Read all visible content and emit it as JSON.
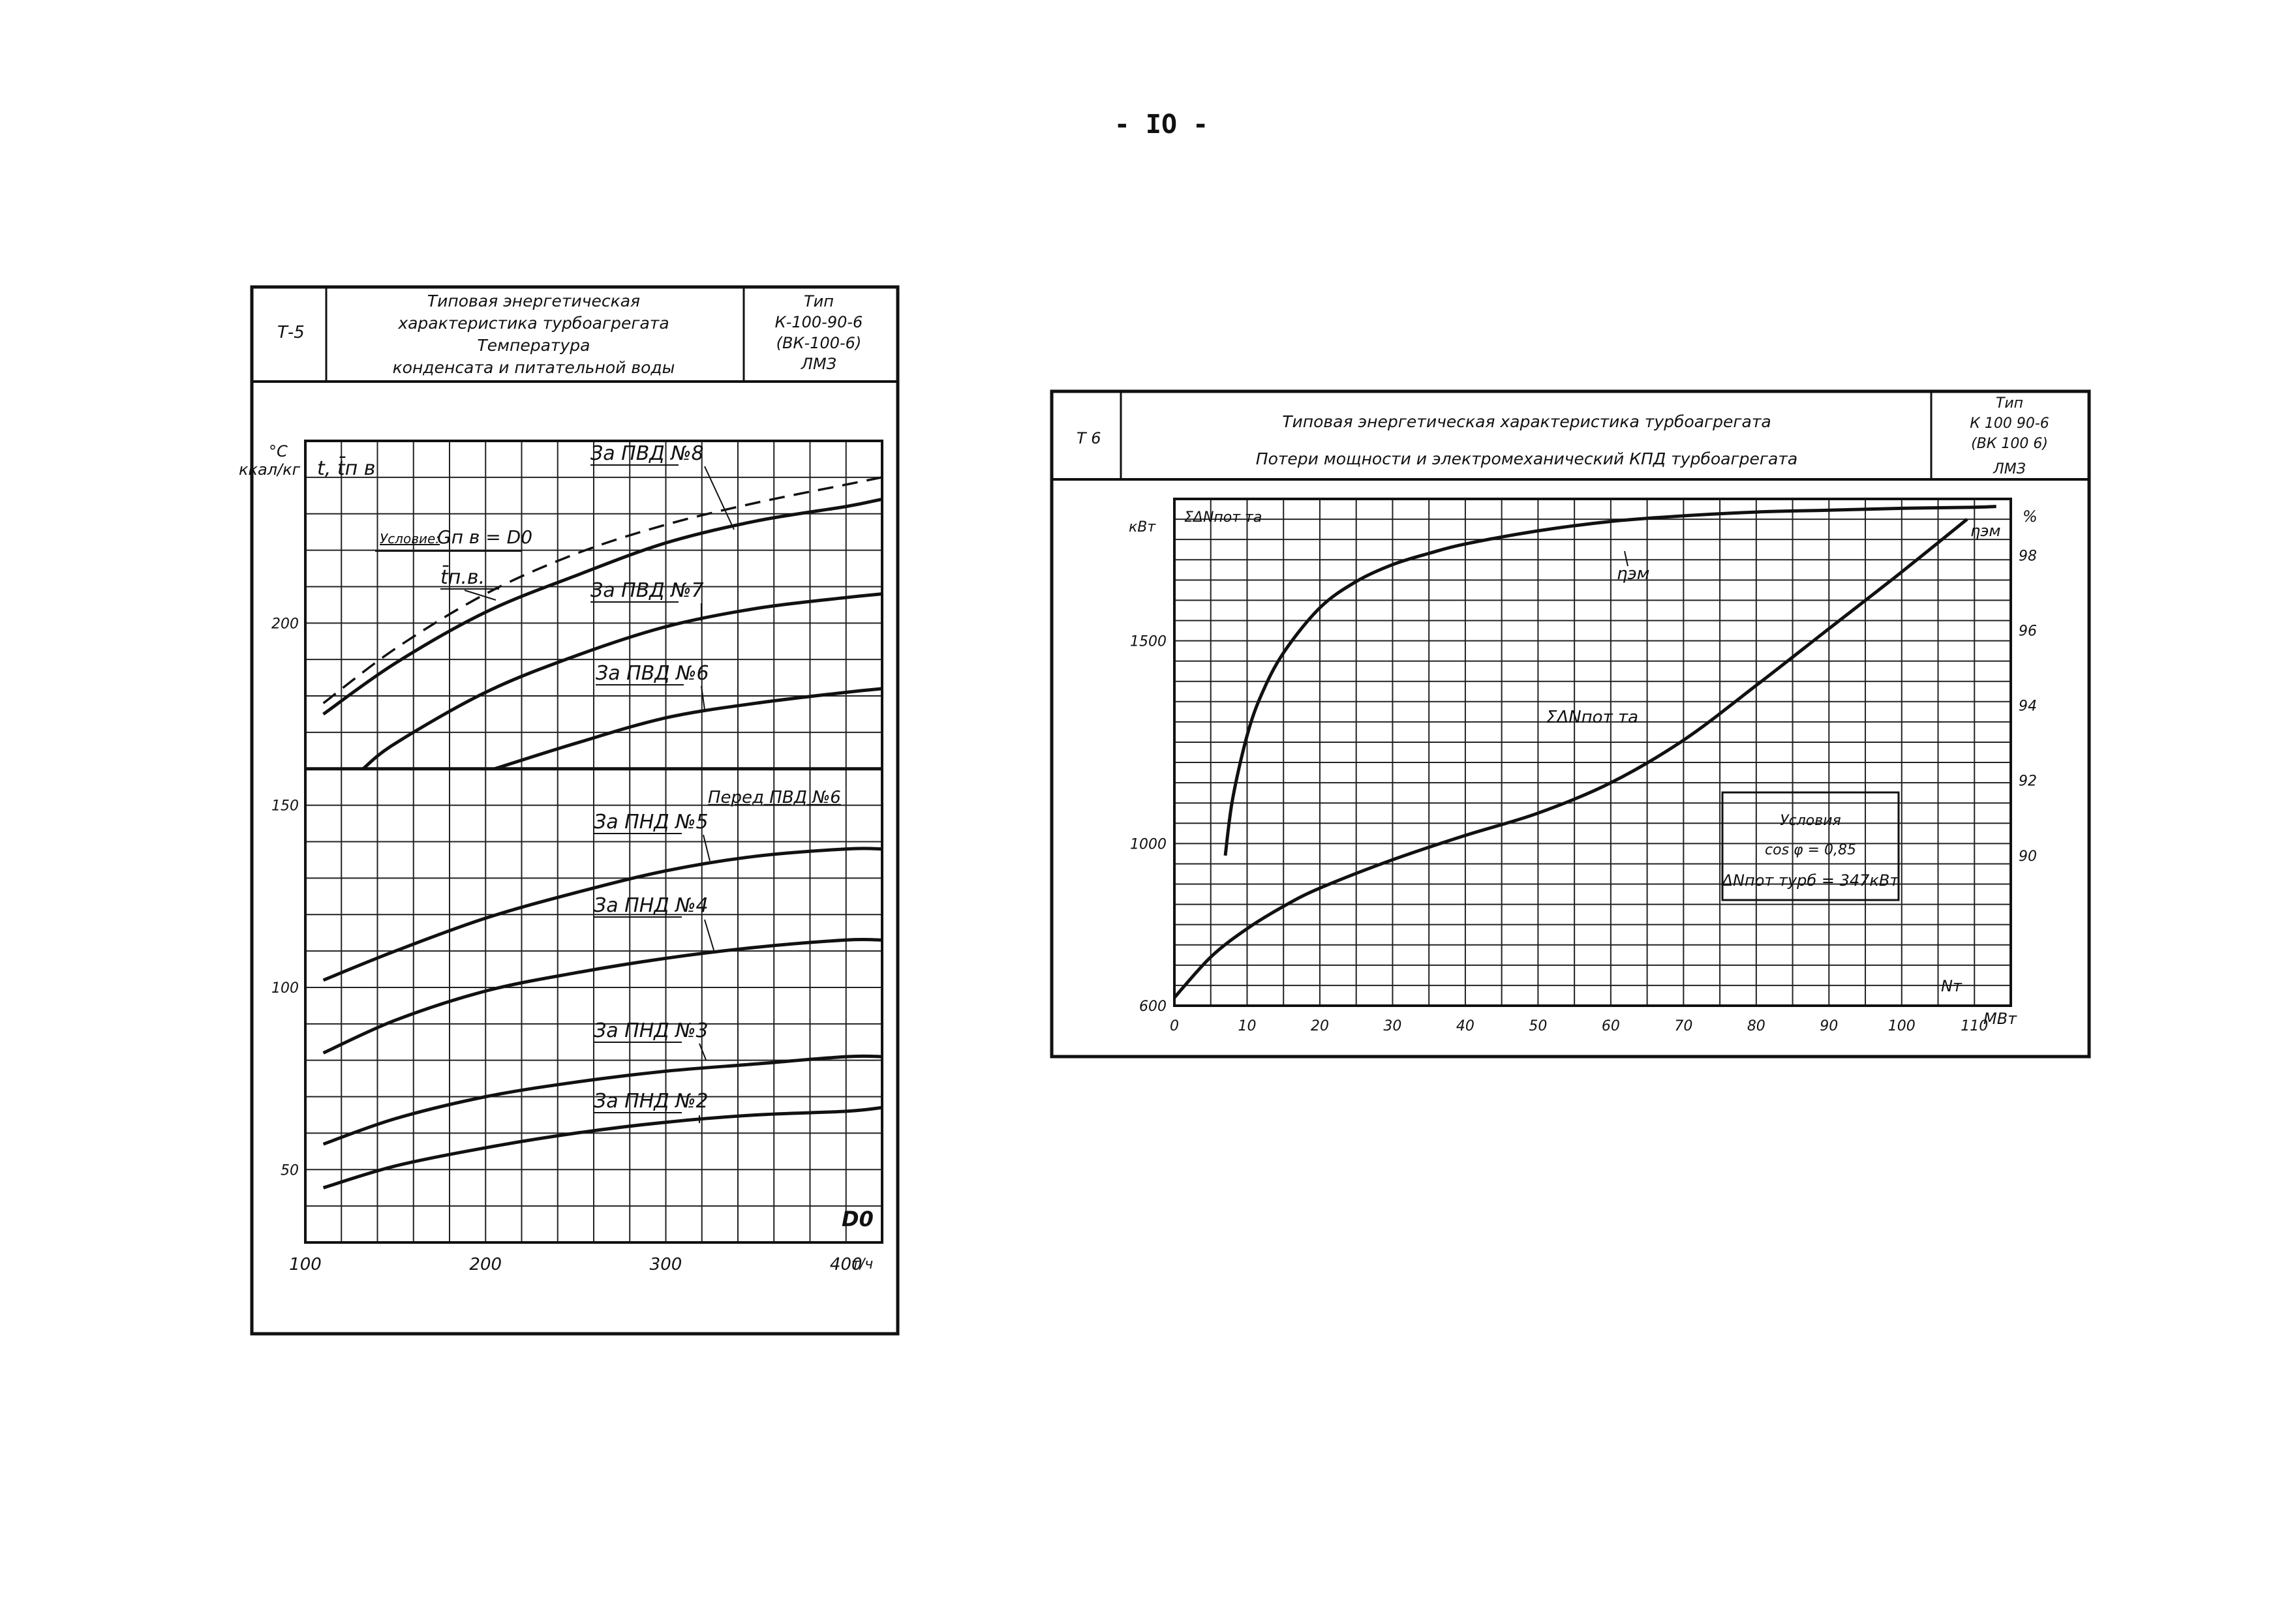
{
  "page_number": "- IO -",
  "chart_data": [
    {
      "id": "T-5",
      "type": "line",
      "header": {
        "code": "Т-5",
        "title_lines": [
          "Типовая энергетическая",
          "характеристика турбоагрегата",
          "Температура",
          "конденсата и питательной воды"
        ],
        "type_lines": [
          "Тип",
          "К-100-90-6",
          "(ВК-100-6)",
          "ЛМЗ"
        ]
      },
      "y_unit_lines": [
        "°C",
        "ккал/кг"
      ],
      "y_symbol": "t, t̄п в",
      "xlabel": "D0",
      "x_unit": "т/ч",
      "xlim": [
        100,
        420
      ],
      "ylim": [
        30,
        250
      ],
      "x_ticks": [
        "100",
        "200",
        "300",
        "400"
      ],
      "x_tick_values": [
        100,
        200,
        300,
        400
      ],
      "y_ticks": [
        "50",
        "100",
        "150",
        "200"
      ],
      "y_tick_values": [
        50,
        100,
        150,
        200
      ],
      "grid": true,
      "condition_label": "Условие:",
      "condition_formula": "Gп в = D0",
      "bands": [
        {
          "label": "Перед ПВД №6",
          "value": 160
        }
      ],
      "series": [
        {
          "name": "t̄п.в.",
          "dashed": true,
          "x": [
            110,
            150,
            200,
            250,
            300,
            350,
            400,
            420
          ],
          "y": [
            178,
            193,
            208,
            219,
            227,
            233,
            238,
            240
          ]
        },
        {
          "name": "За ПВД №8",
          "dashed": false,
          "x": [
            110,
            150,
            200,
            250,
            300,
            350,
            400,
            420
          ],
          "y": [
            175,
            189,
            203,
            213,
            222,
            228,
            232,
            234
          ]
        },
        {
          "name": "За ПВД №7",
          "dashed": false,
          "x": [
            132,
            150,
            200,
            250,
            300,
            350,
            400,
            420
          ],
          "y": [
            160,
            167,
            181,
            191,
            199,
            204,
            207,
            208
          ]
        },
        {
          "name": "За ПВД №6",
          "dashed": false,
          "x": [
            205,
            250,
            300,
            350,
            400,
            420
          ],
          "y": [
            160,
            167,
            174,
            178,
            181,
            182
          ]
        },
        {
          "name": "За ПНД №5",
          "dashed": false,
          "x": [
            110,
            150,
            200,
            250,
            300,
            350,
            400,
            420
          ],
          "y": [
            102,
            110,
            119,
            126,
            132,
            136,
            138,
            138
          ]
        },
        {
          "name": "За ПНД №4",
          "dashed": false,
          "x": [
            110,
            150,
            200,
            250,
            300,
            350,
            400,
            420
          ],
          "y": [
            82,
            91,
            99,
            104,
            108,
            111,
            113,
            113
          ]
        },
        {
          "name": "За ПНД №3",
          "dashed": false,
          "x": [
            110,
            150,
            200,
            250,
            300,
            350,
            400,
            420
          ],
          "y": [
            57,
            64,
            70,
            74,
            77,
            79,
            81,
            81
          ]
        },
        {
          "name": "За ПНД №2",
          "dashed": false,
          "x": [
            110,
            150,
            200,
            250,
            300,
            350,
            400,
            420
          ],
          "y": [
            45,
            51,
            56,
            60,
            63,
            65,
            66,
            67
          ]
        }
      ]
    },
    {
      "id": "T-6",
      "type": "line",
      "header": {
        "code": "Т 6",
        "title_lines": [
          "Типовая энергетическая характеристика турбоагрегата",
          "Потери мощности и электромеханический КПД турбоагрегата"
        ],
        "type_lines": [
          "Тип",
          "К 100 90-6",
          "(ВК 100 6)",
          "ЛМЗ"
        ]
      },
      "ylabel_left": "кВт",
      "left_symbol": "ΣΔNпот та",
      "ylabel_right": "%",
      "xlabel": "Nт",
      "x_unit": "МВт",
      "xlim": [
        0,
        115
      ],
      "ylim_left": [
        600,
        1850
      ],
      "ylim_right": [
        86,
        99.5
      ],
      "x_ticks": [
        "0",
        "10",
        "20",
        "30",
        "40",
        "50",
        "60",
        "70",
        "80",
        "90",
        "100",
        "110"
      ],
      "x_tick_values": [
        0,
        10,
        20,
        30,
        40,
        50,
        60,
        70,
        80,
        90,
        100,
        110
      ],
      "y_left_ticks": [
        "600",
        "1000",
        "1500"
      ],
      "y_left_tick_values": [
        600,
        1000,
        1500
      ],
      "y_right_ticks": [
        "90",
        "92",
        "94",
        "96",
        "98"
      ],
      "y_right_tick_values": [
        90,
        92,
        94,
        96,
        98
      ],
      "grid": true,
      "conditions": {
        "title": "Условия",
        "line1": "cos φ = 0,85",
        "line2": "ΔNпот турб = 347кВт"
      },
      "series": [
        {
          "name": "ηэм",
          "axis": "right",
          "x": [
            7,
            8,
            10,
            12,
            15,
            20,
            25,
            30,
            35,
            40,
            50,
            60,
            70,
            80,
            90,
            100,
            110,
            113
          ],
          "y": [
            90,
            91.5,
            93.2,
            94.3,
            95.4,
            96.6,
            97.3,
            97.75,
            98.05,
            98.3,
            98.65,
            98.9,
            99.05,
            99.15,
            99.2,
            99.25,
            99.28,
            99.3
          ]
        },
        {
          "name": "ΣΔNпот та",
          "axis": "left",
          "x": [
            0,
            5,
            10,
            15,
            20,
            30,
            40,
            50,
            60,
            70,
            80,
            90,
            100,
            109
          ],
          "y": [
            620,
            720,
            790,
            845,
            890,
            960,
            1020,
            1075,
            1150,
            1255,
            1390,
            1530,
            1670,
            1800
          ]
        }
      ]
    }
  ]
}
